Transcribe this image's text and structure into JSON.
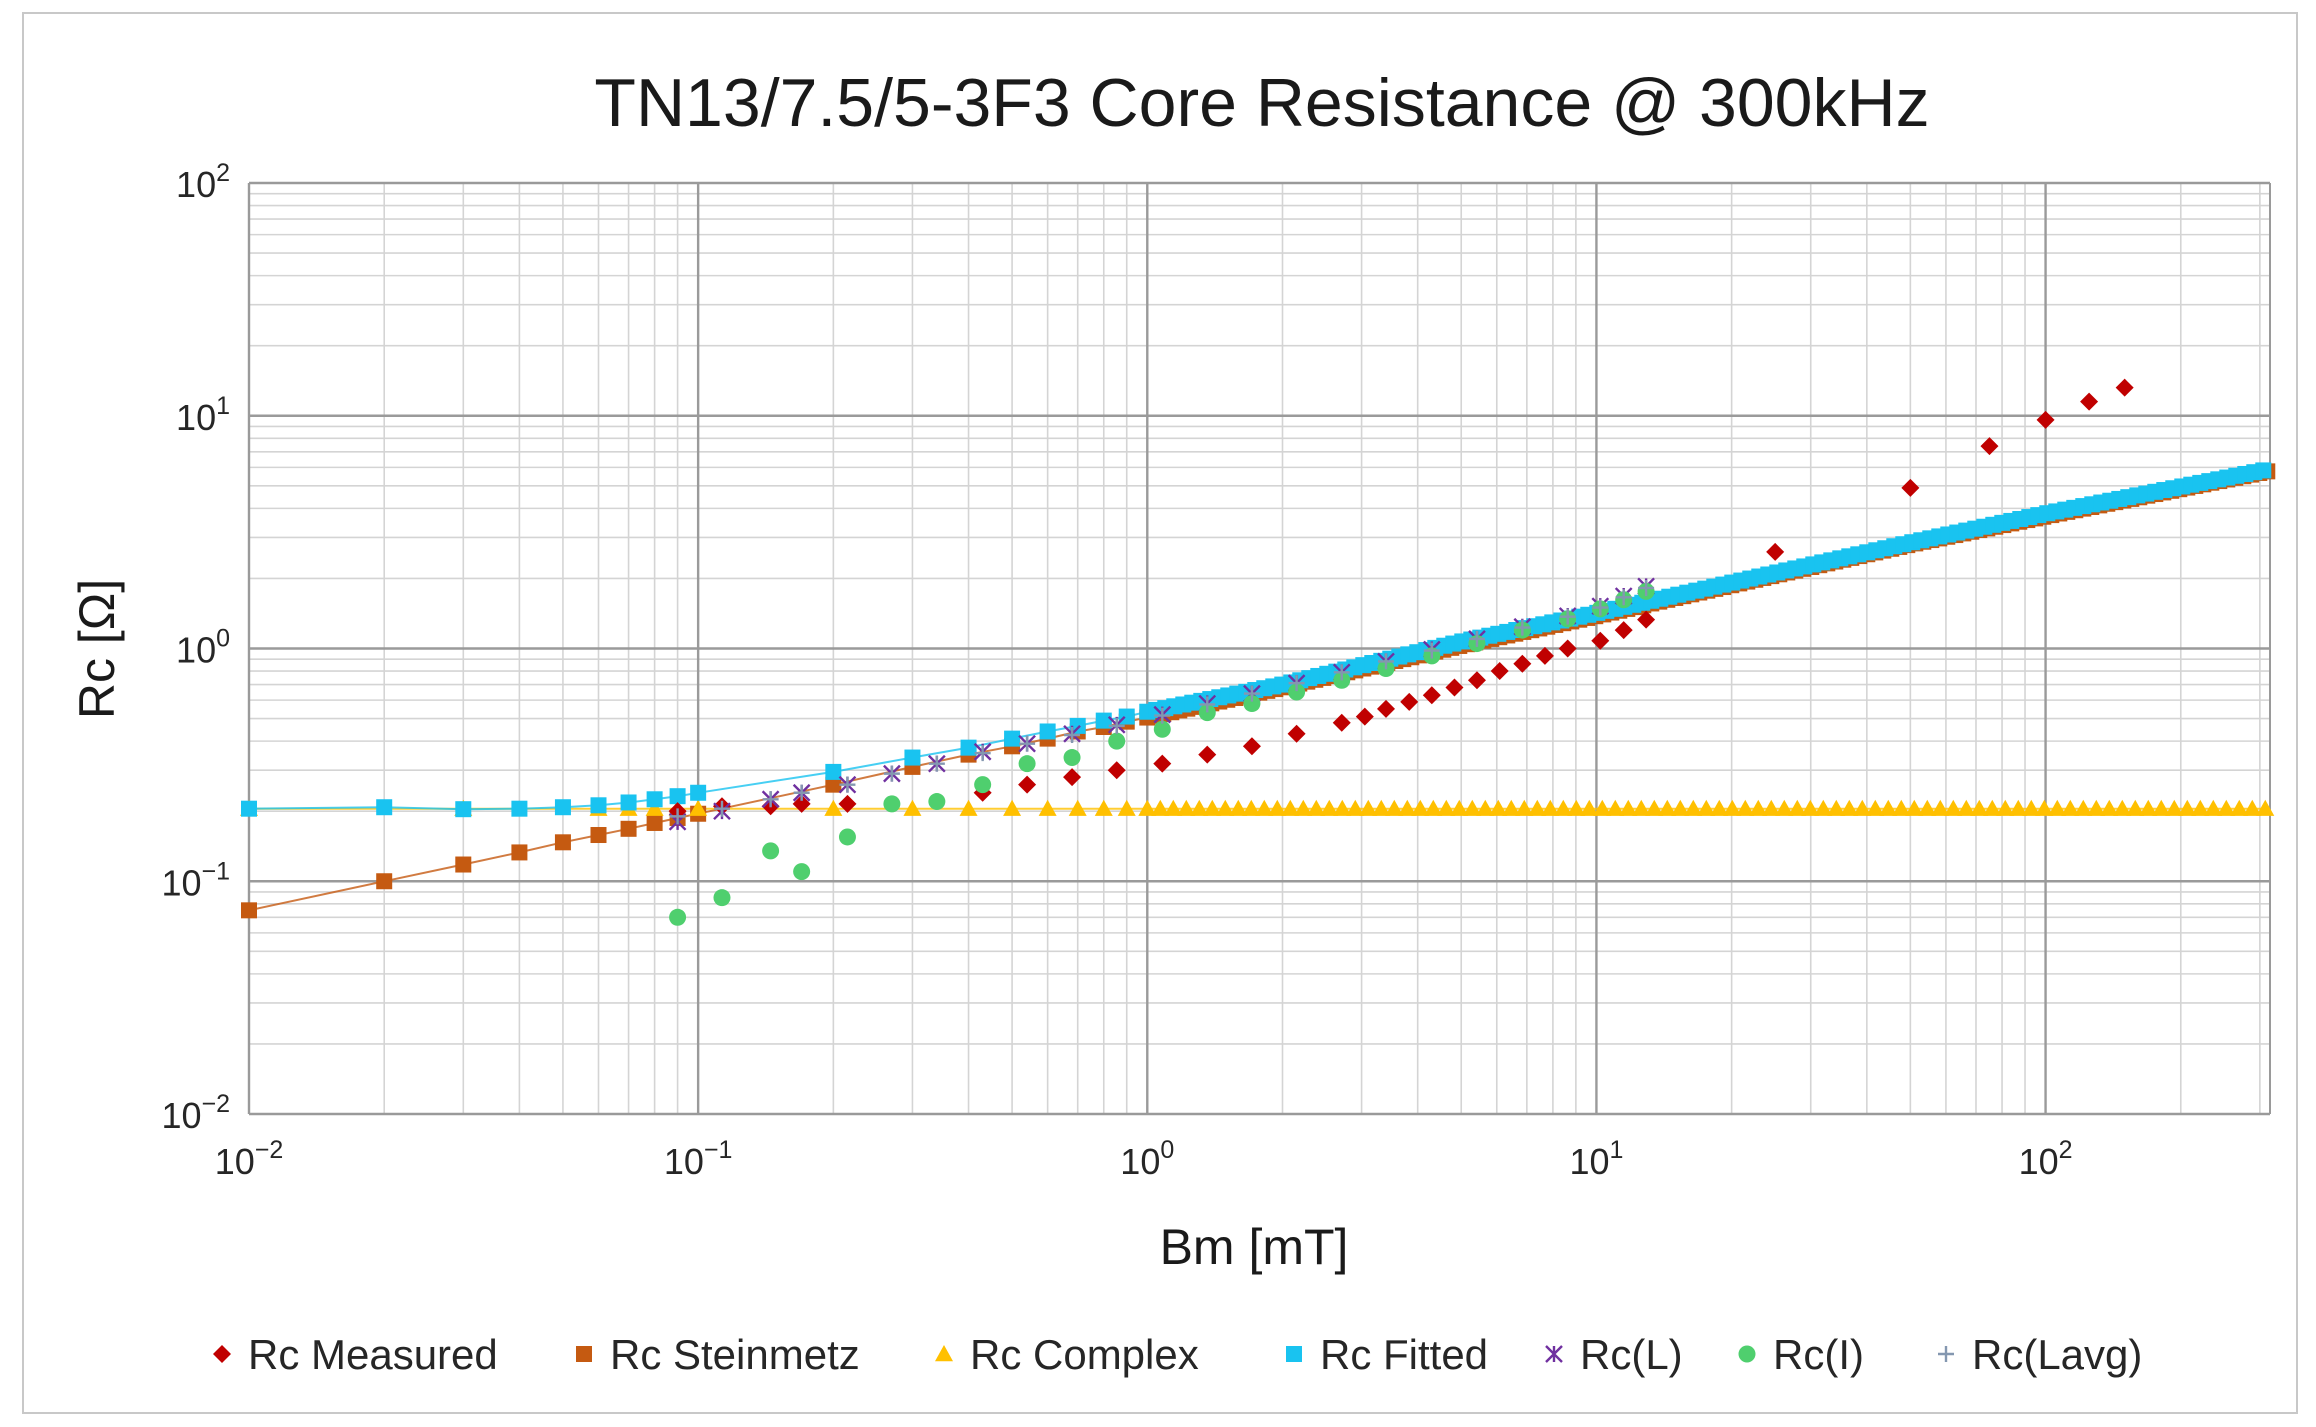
{
  "chart_data": {
    "type": "scatter",
    "title": "TN13/7.5/5-3F3 Core Resistance @ 300kHz",
    "xlabel": "Bm [mT]",
    "ylabel": "Rc [Ω]",
    "xscale": "log",
    "yscale": "log",
    "xlim": [
      0.01,
      316
    ],
    "ylim": [
      0.01,
      100
    ],
    "grid": true,
    "legend_position": "bottom",
    "x_ticks": [
      {
        "base": "10",
        "exp": "−2"
      },
      {
        "base": "10",
        "exp": "−1"
      },
      {
        "base": "10",
        "exp": "0"
      },
      {
        "base": "10",
        "exp": "1"
      },
      {
        "base": "10",
        "exp": "2"
      }
    ],
    "y_ticks": [
      {
        "base": "10",
        "exp": "−2"
      },
      {
        "base": "10",
        "exp": "−1"
      },
      {
        "base": "10",
        "exp": "0"
      },
      {
        "base": "10",
        "exp": "1"
      },
      {
        "base": "10",
        "exp": "2"
      }
    ],
    "series": [
      {
        "name": "Rc Measured",
        "marker": "diamond",
        "color": "#c00000",
        "x": [
          0.09,
          0.113,
          0.145,
          0.17,
          0.215,
          0.43,
          0.54,
          0.68,
          0.855,
          1.08,
          1.36,
          1.71,
          2.15,
          2.71,
          3.05,
          3.4,
          3.83,
          4.3,
          4.83,
          5.42,
          6.09,
          6.84,
          7.68,
          8.63,
          10.2,
          11.5,
          12.9,
          25,
          50,
          75,
          100,
          125,
          150
        ],
        "y": [
          0.2,
          0.21,
          0.21,
          0.215,
          0.215,
          0.24,
          0.26,
          0.28,
          0.3,
          0.32,
          0.35,
          0.38,
          0.43,
          0.48,
          0.51,
          0.55,
          0.59,
          0.63,
          0.68,
          0.73,
          0.8,
          0.86,
          0.93,
          1.0,
          1.08,
          1.2,
          1.33,
          2.6,
          4.9,
          7.4,
          9.6,
          11.5,
          13.2
        ]
      },
      {
        "name": "Rc Steinmetz",
        "marker": "square",
        "color": "#c55a11",
        "x": [
          0.01,
          0.02,
          0.03,
          0.04,
          0.05,
          0.06,
          0.07,
          0.08,
          0.09,
          0.1,
          0.2,
          0.3,
          0.4,
          0.5,
          0.6,
          0.7,
          0.8,
          0.9,
          1.0,
          2.0,
          5.0,
          10.0,
          50.0,
          100.0,
          316.0
        ],
        "y": [
          0.075,
          0.1,
          0.118,
          0.133,
          0.147,
          0.158,
          0.168,
          0.178,
          0.187,
          0.195,
          0.26,
          0.31,
          0.35,
          0.38,
          0.41,
          0.44,
          0.46,
          0.485,
          0.505,
          0.68,
          1.03,
          1.38,
          2.8,
          3.7,
          5.8
        ]
      },
      {
        "name": "Rc Complex",
        "marker": "triangle",
        "color": "#ffc000",
        "x": [
          0.01,
          0.03,
          0.06,
          0.07,
          0.08,
          0.09,
          0.1,
          0.2,
          0.3,
          0.4,
          0.5,
          0.6,
          0.7,
          0.8,
          0.9,
          1.0,
          316.0
        ],
        "y": [
          0.205,
          0.205,
          0.205,
          0.205,
          0.205,
          0.205,
          0.205,
          0.205,
          0.205,
          0.205,
          0.205,
          0.205,
          0.205,
          0.205,
          0.205,
          0.205,
          0.205
        ]
      },
      {
        "name": "Rc Fitted",
        "marker": "square",
        "color": "#19c3f0",
        "x": [
          0.01,
          0.02,
          0.03,
          0.04,
          0.05,
          0.06,
          0.07,
          0.08,
          0.09,
          0.1,
          0.2,
          0.3,
          0.4,
          0.5,
          0.6,
          0.7,
          0.8,
          0.9,
          1.0,
          2.0,
          5.0,
          10.0,
          50.0,
          100.0,
          316.0
        ],
        "y": [
          0.205,
          0.208,
          0.204,
          0.205,
          0.208,
          0.212,
          0.218,
          0.225,
          0.232,
          0.24,
          0.295,
          0.34,
          0.375,
          0.41,
          0.44,
          0.465,
          0.49,
          0.51,
          0.535,
          0.7,
          1.07,
          1.42,
          2.85,
          3.8,
          5.9
        ]
      },
      {
        "name": "Rc(L)",
        "marker": "asterisk",
        "color": "#7030a0",
        "x": [
          0.09,
          0.113,
          0.145,
          0.17,
          0.215,
          0.27,
          0.34,
          0.43,
          0.54,
          0.68,
          0.855,
          1.08,
          1.36,
          1.71,
          2.15,
          2.71,
          3.4,
          4.3,
          5.42,
          6.84,
          8.63,
          10.2,
          11.5,
          12.9
        ],
        "y": [
          0.18,
          0.2,
          0.225,
          0.24,
          0.26,
          0.29,
          0.32,
          0.36,
          0.39,
          0.43,
          0.47,
          0.52,
          0.58,
          0.64,
          0.71,
          0.79,
          0.88,
          0.99,
          1.1,
          1.24,
          1.38,
          1.52,
          1.68,
          1.85
        ]
      },
      {
        "name": "Rc(I)",
        "marker": "circle",
        "color": "#4fcf6e",
        "x": [
          0.09,
          0.113,
          0.145,
          0.17,
          0.215,
          0.27,
          0.34,
          0.43,
          0.54,
          0.68,
          0.855,
          1.08,
          1.36,
          1.71,
          2.15,
          2.71,
          3.4,
          4.3,
          5.42,
          6.84,
          8.63,
          10.2,
          11.5,
          12.9
        ],
        "y": [
          0.07,
          0.085,
          0.135,
          0.11,
          0.155,
          0.215,
          0.22,
          0.26,
          0.32,
          0.34,
          0.4,
          0.45,
          0.53,
          0.58,
          0.65,
          0.73,
          0.82,
          0.93,
          1.05,
          1.2,
          1.34,
          1.48,
          1.62,
          1.76
        ]
      },
      {
        "name": "Rc(Lavg)",
        "marker": "plus",
        "color": "#8497b0",
        "x": [
          0.09,
          0.113,
          0.145,
          0.17,
          0.215,
          0.27,
          0.34,
          0.43,
          0.54,
          0.68,
          0.855,
          1.08,
          1.36,
          1.71,
          2.15,
          2.71,
          3.4,
          4.3,
          5.42,
          6.84,
          8.63,
          10.2,
          11.5,
          12.9
        ],
        "y": [
          0.19,
          0.205,
          0.225,
          0.24,
          0.26,
          0.29,
          0.32,
          0.355,
          0.39,
          0.425,
          0.465,
          0.515,
          0.575,
          0.64,
          0.71,
          0.79,
          0.88,
          0.98,
          1.1,
          1.23,
          1.37,
          1.5,
          1.66,
          1.82
        ]
      }
    ]
  }
}
